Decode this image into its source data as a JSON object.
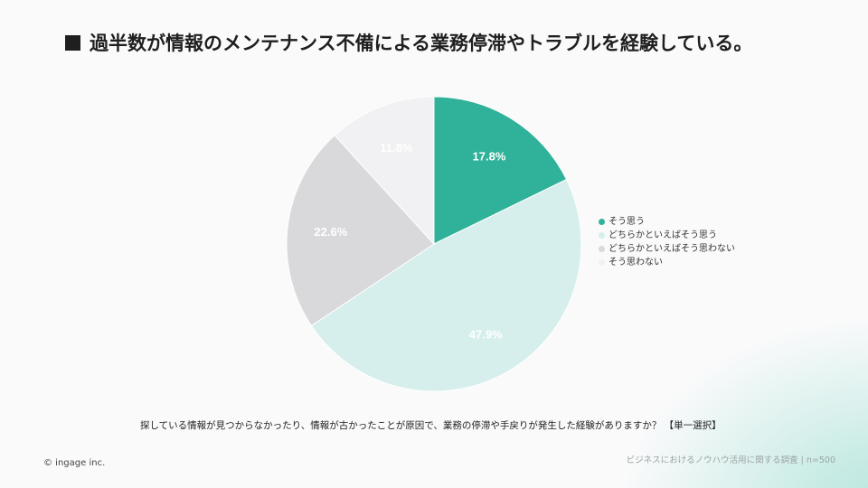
{
  "title": "過半数が情報のメンテナンス不備による業務停滞やトラブルを経験している。",
  "question": "探している情報が見つからなかったり、情報が古かったことが原因で、業務の停滞や手戻りが発生した経験がありますか？ 【単一選択】",
  "footer": {
    "copyright": "© ingage inc.",
    "survey_note": "ビジネスにおけるノウハウ活用に関する調査 | n=500"
  },
  "chart_data": {
    "type": "pie",
    "title": "",
    "start_angle": "12 o'clock, clockwise",
    "slices": [
      {
        "label": "そう思う",
        "value": 17.8,
        "display": "17.8%",
        "color": "#2fb299",
        "label_color": "#ffffff"
      },
      {
        "label": "どちらかといえばそう思う",
        "value": 47.9,
        "display": "47.9%",
        "color": "#d6efec",
        "label_color": "#ffffff"
      },
      {
        "label": "どちらかといえばそう思わない",
        "value": 22.6,
        "display": "22.6%",
        "color": "#d9d9dc",
        "label_color": "#ffffff"
      },
      {
        "label": "そう思わない",
        "value": 11.8,
        "display": "11.8%",
        "color": "#f1f1f3",
        "label_color": "#ffffff"
      }
    ],
    "legend_position": "right"
  }
}
